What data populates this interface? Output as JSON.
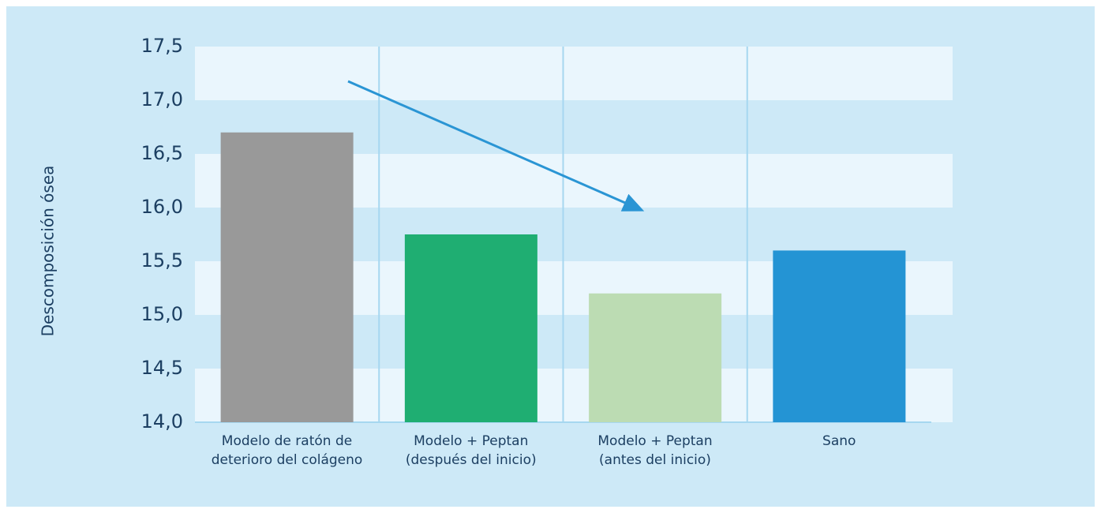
{
  "chart_data": {
    "type": "bar",
    "y_label": "Descomposición ósea",
    "categories": [
      "Modelo de ratón de\ndeterioro del colágeno",
      "Modelo + Peptan\n(después del inicio)",
      "Modelo + Peptan\n(antes del inicio)",
      "Sano"
    ],
    "values": [
      16.7,
      15.75,
      15.2,
      15.6
    ],
    "colors": [
      "#999999",
      "#1fae72",
      "#bcdcb3",
      "#2494d4"
    ],
    "ylim": [
      14.0,
      17.5
    ],
    "yticks": [
      {
        "value": 14.0,
        "label": "14,0"
      },
      {
        "value": 14.5,
        "label": "14,5"
      },
      {
        "value": 15.0,
        "label": "15,0"
      },
      {
        "value": 15.5,
        "label": "15,5"
      },
      {
        "value": 16.0,
        "label": "16,0"
      },
      {
        "value": 16.5,
        "label": "16,5"
      },
      {
        "value": 17.0,
        "label": "17,0"
      },
      {
        "value": 17.5,
        "label": "17,5"
      }
    ],
    "grid": true
  }
}
